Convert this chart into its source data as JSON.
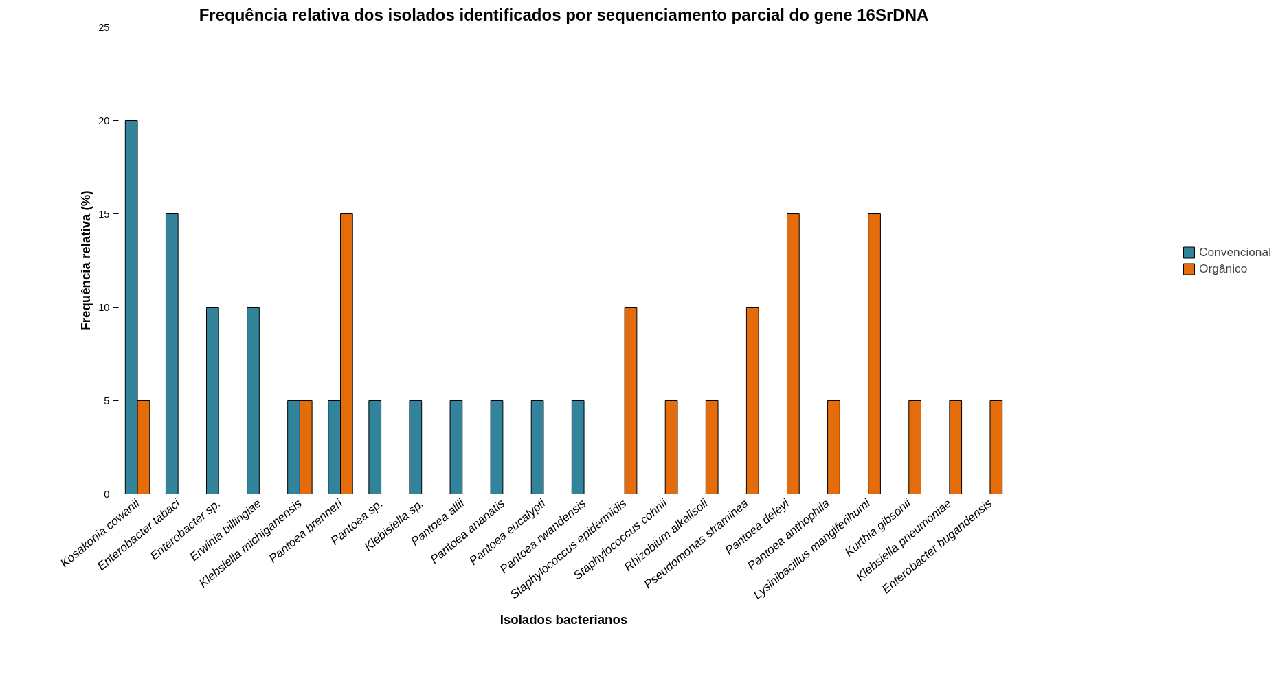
{
  "chart_data": {
    "type": "bar",
    "title": "Frequência relativa dos isolados identificados por sequenciamento parcial do gene 16SrDNA",
    "xlabel": "Isolados bacterianos",
    "ylabel": "Frequência relativa (%)",
    "categories": [
      "Kosakonia cowanii",
      "Enterobacter tabaci",
      "Enterobacter sp.",
      "Erwinia billingiae",
      "Klebsiella michiganensis",
      "Pantoea brenneri",
      "Pantoea sp.",
      "Klebisiella sp.",
      "Pantoea allii",
      "Pantoea ananatis",
      "Pantoea eucalypti",
      "Pantoea rwandensis",
      "Staphylococcus epidermidis",
      "Staphylococcus cohnii",
      "Rhizobium alkalisoli",
      "Pseudomonas straminea",
      "Pantoea deleyi",
      "Pantoea anthophila",
      "Lysinibacillus mangiferihumi",
      "Kurthia gibsonii",
      "Klebsiella pneumoniae",
      "Enterobacter bugandensis"
    ],
    "series": [
      {
        "name": "Convencional",
        "color": "#31849b",
        "values": [
          20,
          15,
          10,
          10,
          5,
          5,
          5,
          5,
          5,
          5,
          5,
          5,
          null,
          null,
          null,
          null,
          null,
          null,
          null,
          null,
          null,
          null
        ]
      },
      {
        "name": "Orgânico",
        "color": "#e46c0a",
        "values": [
          5,
          null,
          null,
          null,
          5,
          15,
          null,
          null,
          null,
          null,
          null,
          null,
          10,
          5,
          5,
          10,
          15,
          5,
          15,
          5,
          5,
          5
        ]
      }
    ],
    "ylim": [
      0,
      25
    ],
    "yticks": [
      0,
      5,
      10,
      15,
      20,
      25
    ],
    "grid": false,
    "legend": "right"
  }
}
